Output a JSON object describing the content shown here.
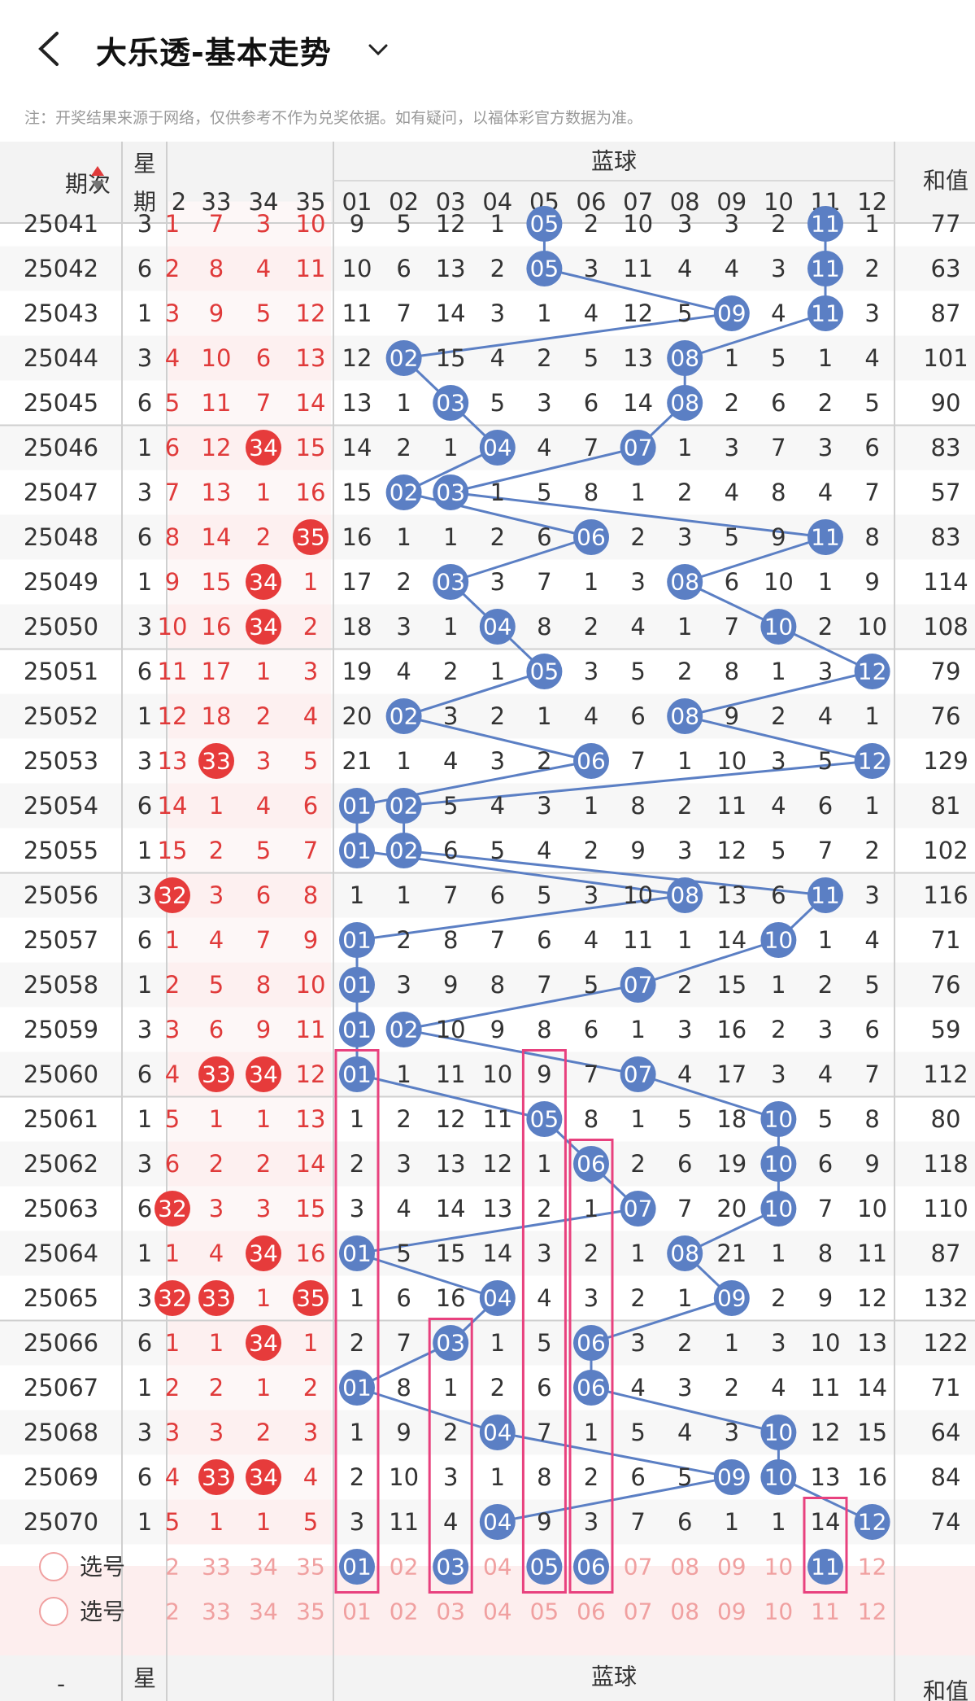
{
  "header": {
    "title": "大乐透-基本走势",
    "notice": "注：开奖结果来源于网络，仅供参考不作为兑奖依据。如有疑问，以福体彩官方数据为准。"
  },
  "table": {
    "col_period": "期次",
    "col_week": "星期",
    "col_week_bottom": "星",
    "blue_title": "蓝球",
    "sum_title": "和值",
    "red_cols": [
      "2",
      "33",
      "34",
      "35"
    ],
    "blue_cols": [
      "01",
      "02",
      "03",
      "04",
      "05",
      "06",
      "07",
      "08",
      "09",
      "10",
      "11",
      "12"
    ],
    "select_label": "选号",
    "bottom_dash": "-",
    "rows": [
      {
        "p": "25041",
        "w": "3",
        "r": [
          "1",
          "7",
          "3",
          "10"
        ],
        "b": [
          "9",
          "5",
          "12",
          "1",
          "05",
          "2",
          "10",
          "3",
          "3",
          "2",
          "11",
          "1"
        ],
        "s": "77"
      },
      {
        "p": "25042",
        "w": "6",
        "r": [
          "2",
          "8",
          "4",
          "11"
        ],
        "b": [
          "10",
          "6",
          "13",
          "2",
          "05",
          "3",
          "11",
          "4",
          "4",
          "3",
          "11",
          "2"
        ],
        "s": "63"
      },
      {
        "p": "25043",
        "w": "1",
        "r": [
          "3",
          "9",
          "5",
          "12"
        ],
        "b": [
          "11",
          "7",
          "14",
          "3",
          "1",
          "4",
          "12",
          "5",
          "09",
          "4",
          "11",
          "3"
        ],
        "s": "87"
      },
      {
        "p": "25044",
        "w": "3",
        "r": [
          "4",
          "10",
          "6",
          "13"
        ],
        "b": [
          "12",
          "02",
          "15",
          "4",
          "2",
          "5",
          "13",
          "08",
          "1",
          "5",
          "1",
          "4"
        ],
        "s": "101"
      },
      {
        "p": "25045",
        "w": "6",
        "r": [
          "5",
          "11",
          "7",
          "14"
        ],
        "b": [
          "13",
          "1",
          "03",
          "5",
          "3",
          "6",
          "14",
          "08",
          "2",
          "6",
          "2",
          "5"
        ],
        "s": "90"
      },
      {
        "p": "25046",
        "w": "1",
        "r": [
          "6",
          "12",
          "34",
          "15"
        ],
        "b": [
          "14",
          "2",
          "1",
          "04",
          "4",
          "7",
          "07",
          "1",
          "3",
          "7",
          "3",
          "6"
        ],
        "s": "83"
      },
      {
        "p": "25047",
        "w": "3",
        "r": [
          "7",
          "13",
          "1",
          "16"
        ],
        "b": [
          "15",
          "02",
          "03",
          "1",
          "5",
          "8",
          "1",
          "2",
          "4",
          "8",
          "4",
          "7"
        ],
        "s": "57"
      },
      {
        "p": "25048",
        "w": "6",
        "r": [
          "8",
          "14",
          "2",
          "35"
        ],
        "b": [
          "16",
          "1",
          "1",
          "2",
          "6",
          "06",
          "2",
          "3",
          "5",
          "9",
          "11",
          "8"
        ],
        "s": "83"
      },
      {
        "p": "25049",
        "w": "1",
        "r": [
          "9",
          "15",
          "34",
          "1"
        ],
        "b": [
          "17",
          "2",
          "03",
          "3",
          "7",
          "1",
          "3",
          "08",
          "6",
          "10",
          "1",
          "9"
        ],
        "s": "114"
      },
      {
        "p": "25050",
        "w": "3",
        "r": [
          "10",
          "16",
          "34",
          "2"
        ],
        "b": [
          "18",
          "3",
          "1",
          "04",
          "8",
          "2",
          "4",
          "1",
          "7",
          "10",
          "2",
          "10"
        ],
        "s": "108"
      },
      {
        "p": "25051",
        "w": "6",
        "r": [
          "11",
          "17",
          "1",
          "3"
        ],
        "b": [
          "19",
          "4",
          "2",
          "1",
          "05",
          "3",
          "5",
          "2",
          "8",
          "1",
          "3",
          "12"
        ],
        "s": "79"
      },
      {
        "p": "25052",
        "w": "1",
        "r": [
          "12",
          "18",
          "2",
          "4"
        ],
        "b": [
          "20",
          "02",
          "3",
          "2",
          "1",
          "4",
          "6",
          "08",
          "9",
          "2",
          "4",
          "1"
        ],
        "s": "76"
      },
      {
        "p": "25053",
        "w": "3",
        "r": [
          "13",
          "33",
          "3",
          "5"
        ],
        "b": [
          "21",
          "1",
          "4",
          "3",
          "2",
          "06",
          "7",
          "1",
          "10",
          "3",
          "5",
          "12"
        ],
        "s": "129"
      },
      {
        "p": "25054",
        "w": "6",
        "r": [
          "14",
          "1",
          "4",
          "6"
        ],
        "b": [
          "01",
          "02",
          "5",
          "4",
          "3",
          "1",
          "8",
          "2",
          "11",
          "4",
          "6",
          "1"
        ],
        "s": "81"
      },
      {
        "p": "25055",
        "w": "1",
        "r": [
          "15",
          "2",
          "5",
          "7"
        ],
        "b": [
          "01",
          "02",
          "6",
          "5",
          "4",
          "2",
          "9",
          "3",
          "12",
          "5",
          "7",
          "2"
        ],
        "s": "102"
      },
      {
        "p": "25056",
        "w": "3",
        "r": [
          "32",
          "3",
          "6",
          "8"
        ],
        "b": [
          "1",
          "1",
          "7",
          "6",
          "5",
          "3",
          "10",
          "08",
          "13",
          "6",
          "11",
          "3"
        ],
        "s": "116"
      },
      {
        "p": "25057",
        "w": "6",
        "r": [
          "1",
          "4",
          "7",
          "9"
        ],
        "b": [
          "01",
          "2",
          "8",
          "7",
          "6",
          "4",
          "11",
          "1",
          "14",
          "10",
          "1",
          "4"
        ],
        "s": "71"
      },
      {
        "p": "25058",
        "w": "1",
        "r": [
          "2",
          "5",
          "8",
          "10"
        ],
        "b": [
          "01",
          "3",
          "9",
          "8",
          "7",
          "5",
          "07",
          "2",
          "15",
          "1",
          "2",
          "5"
        ],
        "s": "76"
      },
      {
        "p": "25059",
        "w": "3",
        "r": [
          "3",
          "6",
          "9",
          "11"
        ],
        "b": [
          "01",
          "02",
          "10",
          "9",
          "8",
          "6",
          "1",
          "3",
          "16",
          "2",
          "3",
          "6"
        ],
        "s": "59"
      },
      {
        "p": "25060",
        "w": "6",
        "r": [
          "4",
          "33",
          "34",
          "12"
        ],
        "b": [
          "01",
          "1",
          "11",
          "10",
          "9",
          "7",
          "07",
          "4",
          "17",
          "3",
          "4",
          "7"
        ],
        "s": "112"
      },
      {
        "p": "25061",
        "w": "1",
        "r": [
          "5",
          "1",
          "1",
          "13"
        ],
        "b": [
          "1",
          "2",
          "12",
          "11",
          "05",
          "8",
          "1",
          "5",
          "18",
          "10",
          "5",
          "8"
        ],
        "s": "80"
      },
      {
        "p": "25062",
        "w": "3",
        "r": [
          "6",
          "2",
          "2",
          "14"
        ],
        "b": [
          "2",
          "3",
          "13",
          "12",
          "1",
          "06",
          "2",
          "6",
          "19",
          "10",
          "6",
          "9"
        ],
        "s": "118"
      },
      {
        "p": "25063",
        "w": "6",
        "r": [
          "32",
          "3",
          "3",
          "15"
        ],
        "b": [
          "3",
          "4",
          "14",
          "13",
          "2",
          "1",
          "07",
          "7",
          "20",
          "10",
          "7",
          "10"
        ],
        "s": "110"
      },
      {
        "p": "25064",
        "w": "1",
        "r": [
          "1",
          "4",
          "34",
          "16"
        ],
        "b": [
          "01",
          "5",
          "15",
          "14",
          "3",
          "2",
          "1",
          "08",
          "21",
          "1",
          "8",
          "11"
        ],
        "s": "87"
      },
      {
        "p": "25065",
        "w": "3",
        "r": [
          "32",
          "33",
          "1",
          "35"
        ],
        "b": [
          "1",
          "6",
          "16",
          "04",
          "4",
          "3",
          "2",
          "1",
          "09",
          "2",
          "9",
          "12"
        ],
        "s": "132"
      },
      {
        "p": "25066",
        "w": "6",
        "r": [
          "1",
          "1",
          "34",
          "1"
        ],
        "b": [
          "2",
          "7",
          "03",
          "1",
          "5",
          "06",
          "3",
          "2",
          "1",
          "3",
          "10",
          "13"
        ],
        "s": "122"
      },
      {
        "p": "25067",
        "w": "1",
        "r": [
          "2",
          "2",
          "1",
          "2"
        ],
        "b": [
          "01",
          "8",
          "1",
          "2",
          "6",
          "06",
          "4",
          "3",
          "2",
          "4",
          "11",
          "14"
        ],
        "s": "71"
      },
      {
        "p": "25068",
        "w": "3",
        "r": [
          "3",
          "3",
          "2",
          "3"
        ],
        "b": [
          "1",
          "9",
          "2",
          "04",
          "7",
          "1",
          "5",
          "4",
          "3",
          "10",
          "12",
          "15"
        ],
        "s": "64"
      },
      {
        "p": "25069",
        "w": "6",
        "r": [
          "4",
          "33",
          "34",
          "4"
        ],
        "b": [
          "2",
          "10",
          "3",
          "1",
          "8",
          "2",
          "6",
          "5",
          "09",
          "10",
          "13",
          "16"
        ],
        "s": "84"
      },
      {
        "p": "25070",
        "w": "1",
        "r": [
          "5",
          "1",
          "1",
          "5"
        ],
        "b": [
          "3",
          "11",
          "4",
          "04",
          "9",
          "3",
          "7",
          "6",
          "1",
          "1",
          "14",
          "12"
        ],
        "s": "74"
      }
    ],
    "red_hits": [
      [
        null,
        null,
        null,
        null
      ],
      [
        null,
        null,
        null,
        null
      ],
      [
        null,
        null,
        null,
        null
      ],
      [
        null,
        null,
        null,
        null
      ],
      [
        null,
        null,
        null,
        null
      ],
      [
        null,
        null,
        "34",
        null
      ],
      [
        null,
        null,
        null,
        null
      ],
      [
        null,
        null,
        null,
        "35"
      ],
      [
        null,
        null,
        "34",
        null
      ],
      [
        null,
        null,
        "34",
        null
      ],
      [
        null,
        null,
        null,
        null
      ],
      [
        null,
        null,
        null,
        null
      ],
      [
        null,
        "33",
        null,
        null
      ],
      [
        null,
        null,
        null,
        null
      ],
      [
        null,
        null,
        null,
        null
      ],
      [
        "32",
        null,
        null,
        null
      ],
      [
        null,
        null,
        null,
        null
      ],
      [
        null,
        null,
        null,
        null
      ],
      [
        null,
        null,
        null,
        null
      ],
      [
        null,
        "33",
        "34",
        null
      ],
      [
        null,
        null,
        null,
        null
      ],
      [
        null,
        null,
        null,
        null
      ],
      [
        "32",
        null,
        null,
        null
      ],
      [
        null,
        null,
        "34",
        null
      ],
      [
        "32",
        "33",
        null,
        "35"
      ],
      [
        null,
        null,
        "34",
        null
      ],
      [
        null,
        null,
        null,
        null
      ],
      [
        null,
        null,
        null,
        null
      ],
      [
        null,
        "33",
        "34",
        null
      ],
      [
        null,
        null,
        null,
        null
      ]
    ],
    "blue_hit_cols": [
      5,
      5,
      9,
      2,
      3,
      4,
      2,
      6,
      3,
      4,
      5,
      2,
      6,
      1,
      1,
      8,
      1,
      1,
      1,
      1,
      5,
      6,
      7,
      1,
      4,
      3,
      1,
      4,
      9,
      4
    ],
    "blue_hit_cols_b": [
      11,
      11,
      11,
      8,
      8,
      7,
      3,
      11,
      8,
      10,
      12,
      8,
      12,
      2,
      2,
      11,
      10,
      7,
      2,
      7,
      10,
      10,
      10,
      8,
      9,
      6,
      6,
      10,
      10,
      12
    ],
    "select_row1": {
      "red": [
        "2",
        "33",
        "34",
        "35"
      ],
      "blue": [
        "01",
        "02",
        "03",
        "04",
        "05",
        "06",
        "07",
        "08",
        "09",
        "10",
        "11",
        "12"
      ],
      "picked": [
        "01",
        "03",
        "05",
        "06",
        "11"
      ]
    },
    "select_row2": {
      "red": [
        "2",
        "33",
        "34",
        "35"
      ],
      "blue": [
        "01",
        "02",
        "03",
        "04",
        "05",
        "06",
        "07",
        "08",
        "09",
        "10",
        "11",
        "12"
      ]
    },
    "colors": {
      "ball_blue": "#5b7fc4",
      "ball_red": "#e63b3b",
      "line": "#5b7fc4",
      "highlight_box": "#e8417e",
      "select_bg": "#fdeeee"
    }
  }
}
